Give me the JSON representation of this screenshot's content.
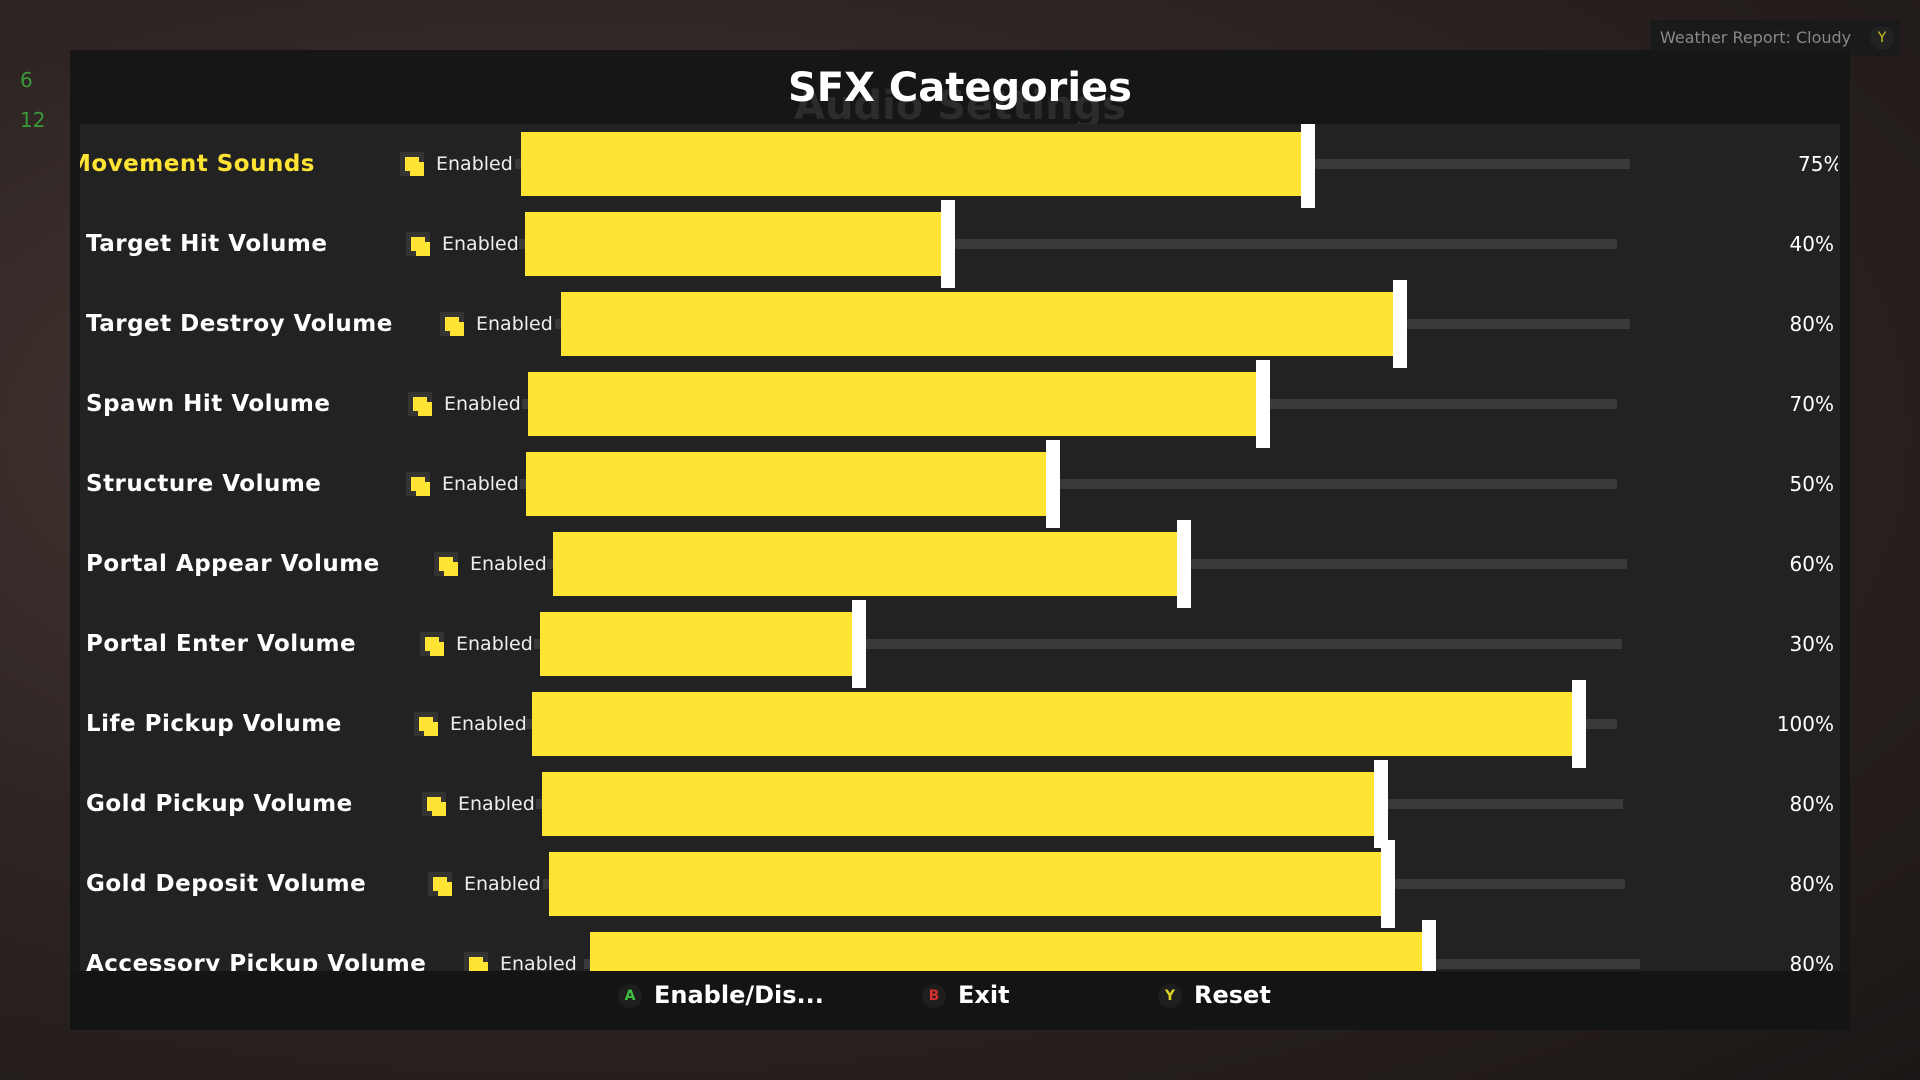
{
  "header": {
    "title": "SFX Categories",
    "background_title": "Audio Settings"
  },
  "hud": {
    "counters": [
      "6",
      "12"
    ]
  },
  "weather": {
    "text": "Weather Report: Cloudy",
    "button": "Y"
  },
  "rows": [
    {
      "label": "Movement Sounds",
      "status": "Enabled",
      "value": 75,
      "value_label": "75%",
      "selected": true
    },
    {
      "label": "Target Hit Volume",
      "status": "Enabled",
      "value": 40,
      "value_label": "40%"
    },
    {
      "label": "Target Destroy Volume",
      "status": "Enabled",
      "value": 80,
      "value_label": "80%"
    },
    {
      "label": "Spawn Hit Volume",
      "status": "Enabled",
      "value": 70,
      "value_label": "70%"
    },
    {
      "label": "Structure Volume",
      "status": "Enabled",
      "value": 50,
      "value_label": "50%"
    },
    {
      "label": "Portal Appear Volume",
      "status": "Enabled",
      "value": 60,
      "value_label": "60%"
    },
    {
      "label": "Portal Enter Volume",
      "status": "Enabled",
      "value": 30,
      "value_label": "30%"
    },
    {
      "label": "Life Pickup Volume",
      "status": "Enabled",
      "value": 100,
      "value_label": "100%"
    },
    {
      "label": "Gold Pickup Volume",
      "status": "Enabled",
      "value": 80,
      "value_label": "80%"
    },
    {
      "label": "Gold Deposit Volume",
      "status": "Enabled",
      "value": 80,
      "value_label": "80%"
    },
    {
      "label": "Accessory Pickup Volume",
      "status": "Enabled",
      "value": 80,
      "value_label": "80%"
    }
  ],
  "footer": {
    "actions": [
      {
        "button": "A",
        "label": "Enable/Dis...",
        "color": "#3fbf3f"
      },
      {
        "button": "B",
        "label": "Exit",
        "color": "#d43030"
      },
      {
        "button": "Y",
        "label": "Reset",
        "color": "#e0d020"
      }
    ]
  }
}
